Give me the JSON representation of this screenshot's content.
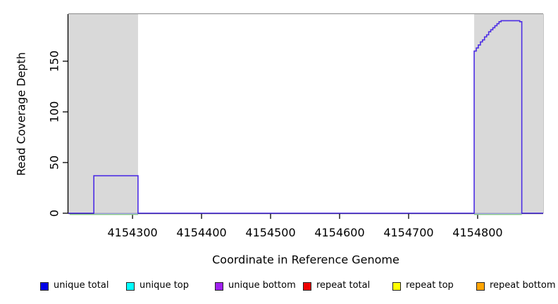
{
  "chart_data": {
    "type": "line",
    "title": "",
    "xlabel": "Coordinate in Reference Genome",
    "ylabel": "Read Coverage Depth",
    "xlim": [
      4154207,
      4154895
    ],
    "ylim": [
      0,
      196.5
    ],
    "x_ticks": [
      4154300,
      4154400,
      4154500,
      4154600,
      4154700,
      4154800
    ],
    "y_ticks": [
      0,
      50,
      100,
      150
    ],
    "grid": false,
    "legend_position": "bottom",
    "plot_bg": "#ffffff",
    "masked_region_color": "#d9d9d9",
    "masked_regions": [
      {
        "x0": 4154207,
        "x1": 4154308
      },
      {
        "x0": 4154795,
        "x1": 4154895
      }
    ],
    "series": [
      {
        "name": "unique bottom",
        "color": "#4c2de4",
        "line_width": 1.6,
        "points": [
          [
            4154207,
            0
          ],
          [
            4154244,
            0
          ],
          [
            4154244,
            37
          ],
          [
            4154308,
            37
          ],
          [
            4154308,
            0
          ],
          [
            4154795,
            0
          ],
          [
            4154795,
            160
          ],
          [
            4154798,
            160
          ],
          [
            4154798,
            163
          ],
          [
            4154801,
            163
          ],
          [
            4154801,
            166
          ],
          [
            4154804,
            166
          ],
          [
            4154804,
            169
          ],
          [
            4154807,
            169
          ],
          [
            4154807,
            171
          ],
          [
            4154810,
            171
          ],
          [
            4154810,
            174
          ],
          [
            4154813,
            174
          ],
          [
            4154813,
            176
          ],
          [
            4154816,
            176
          ],
          [
            4154816,
            179
          ],
          [
            4154819,
            179
          ],
          [
            4154819,
            181
          ],
          [
            4154822,
            181
          ],
          [
            4154822,
            183
          ],
          [
            4154825,
            183
          ],
          [
            4154825,
            185
          ],
          [
            4154828,
            185
          ],
          [
            4154828,
            187
          ],
          [
            4154831,
            187
          ],
          [
            4154831,
            189
          ],
          [
            4154834,
            189
          ],
          [
            4154834,
            190
          ],
          [
            4154861,
            190
          ],
          [
            4154861,
            189
          ],
          [
            4154864,
            189
          ],
          [
            4154864,
            0
          ],
          [
            4154895,
            0
          ]
        ]
      }
    ],
    "zero_overlay_color": "#a0a0e8",
    "zero_overlays": [
      {
        "x0": 4154244,
        "x1": 4154308
      },
      {
        "x0": 4154795,
        "x1": 4154864
      }
    ],
    "baseline_color": "#8cc88c",
    "baseline_segments": [
      {
        "x0": 4154209,
        "x1": 4154308
      },
      {
        "x0": 4154795,
        "x1": 4154864
      }
    ],
    "legend": [
      {
        "label": "unique total",
        "color": "#0000e8"
      },
      {
        "label": "unique top",
        "color": "#00ffff"
      },
      {
        "label": "unique bottom",
        "color": "#a020f0"
      },
      {
        "label": "repeat total",
        "color": "#ee0000"
      },
      {
        "label": "repeat top",
        "color": "#ffff00"
      },
      {
        "label": "repeat bottom",
        "color": "#ffa500"
      }
    ]
  }
}
